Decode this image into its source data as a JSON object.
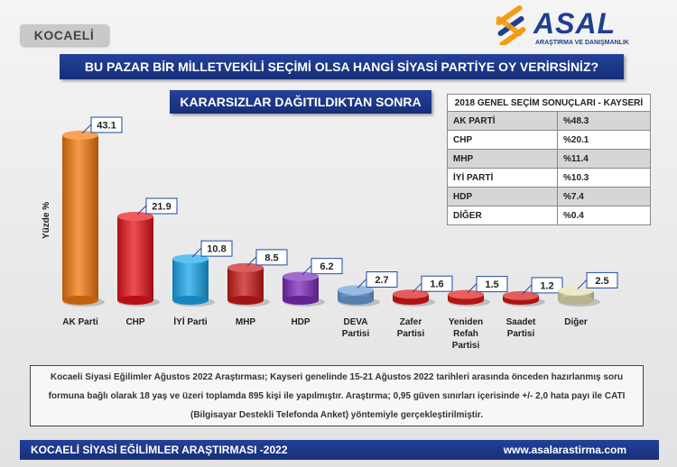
{
  "region_badge": "KOCAELİ",
  "logo": {
    "name": "ASAL",
    "tagline": "ARAŞTIRMA VE DANIŞMANLIK",
    "colors": [
      "#f39c12",
      "#1f3f8f"
    ]
  },
  "question": "BU PAZAR BİR MİLLETVEKİLİ SEÇİMİ OLSA HANGİ SİYASİ PARTİYE OY VERİRSİNİZ?",
  "subtitle": "KARARSIZLAR DAĞITILDIKTAN SONRA",
  "election_2018": {
    "title": "2018 GENEL SEÇİM SONUÇLARI - KAYSERİ",
    "rows": [
      {
        "party": "AK PARTİ",
        "value": "%48.3"
      },
      {
        "party": "CHP",
        "value": "%20.1"
      },
      {
        "party": "MHP",
        "value": "%11.4"
      },
      {
        "party": "İYİ PARTİ",
        "value": "%10.3"
      },
      {
        "party": "HDP",
        "value": "%7.4"
      },
      {
        "party": "DİĞER",
        "value": "%0.4"
      }
    ]
  },
  "chart_data": {
    "type": "bar",
    "ylabel": "Yüzde %",
    "ylim": [
      0,
      45
    ],
    "categories": [
      [
        "AK Parti"
      ],
      [
        "CHP"
      ],
      [
        "İYİ Parti"
      ],
      [
        "MHP"
      ],
      [
        "HDP"
      ],
      [
        "DEVA",
        "Partisi"
      ],
      [
        "Zafer",
        "Partisi"
      ],
      [
        "Yeniden",
        "Refah",
        "Partisi"
      ],
      [
        "Saadet",
        "Partisi"
      ],
      [
        "Diğer"
      ]
    ],
    "values": [
      43.1,
      21.9,
      10.8,
      8.5,
      6.2,
      2.7,
      1.6,
      1.5,
      1.2,
      2.5
    ],
    "value_labels": [
      "43.1",
      "21.9",
      "10.8",
      "8.5",
      "6.2",
      "2.7",
      "1.6",
      "1.5",
      "1.2",
      "2.5"
    ],
    "colors": [
      "#f47a0e",
      "#e8131b",
      "#1aa7ec",
      "#cc1a1a",
      "#7b2cb8",
      "#6a9fd8",
      "#d81818",
      "#e01a1a",
      "#d81818",
      "#e6dfb0"
    ],
    "grid": false,
    "legend": "none"
  },
  "note_lines": [
    "Kocaeli Siyasi Eğilimler Ağustos 2022 Araştırması; Kayseri genelinde 15-21 Ağustos 2022 tarihleri arasında önceden hazırlanmış soru",
    "formuna bağlı olarak 18 yaş ve üzeri toplamda 895 kişi ile yapılmıştır. Araştırma; 0,95 güven sınırları içerisinde +/- 2,0 hata payı ile CATI",
    "(Bilgisayar Destekli Telefonda Anket) yöntemiyle gerçekleştirilmiştir."
  ],
  "footer": {
    "left": "KOCAELİ SİYASİ EĞİLİMLER ARAŞTIRMASI -2022",
    "right": "www.asalarastirma.com"
  }
}
